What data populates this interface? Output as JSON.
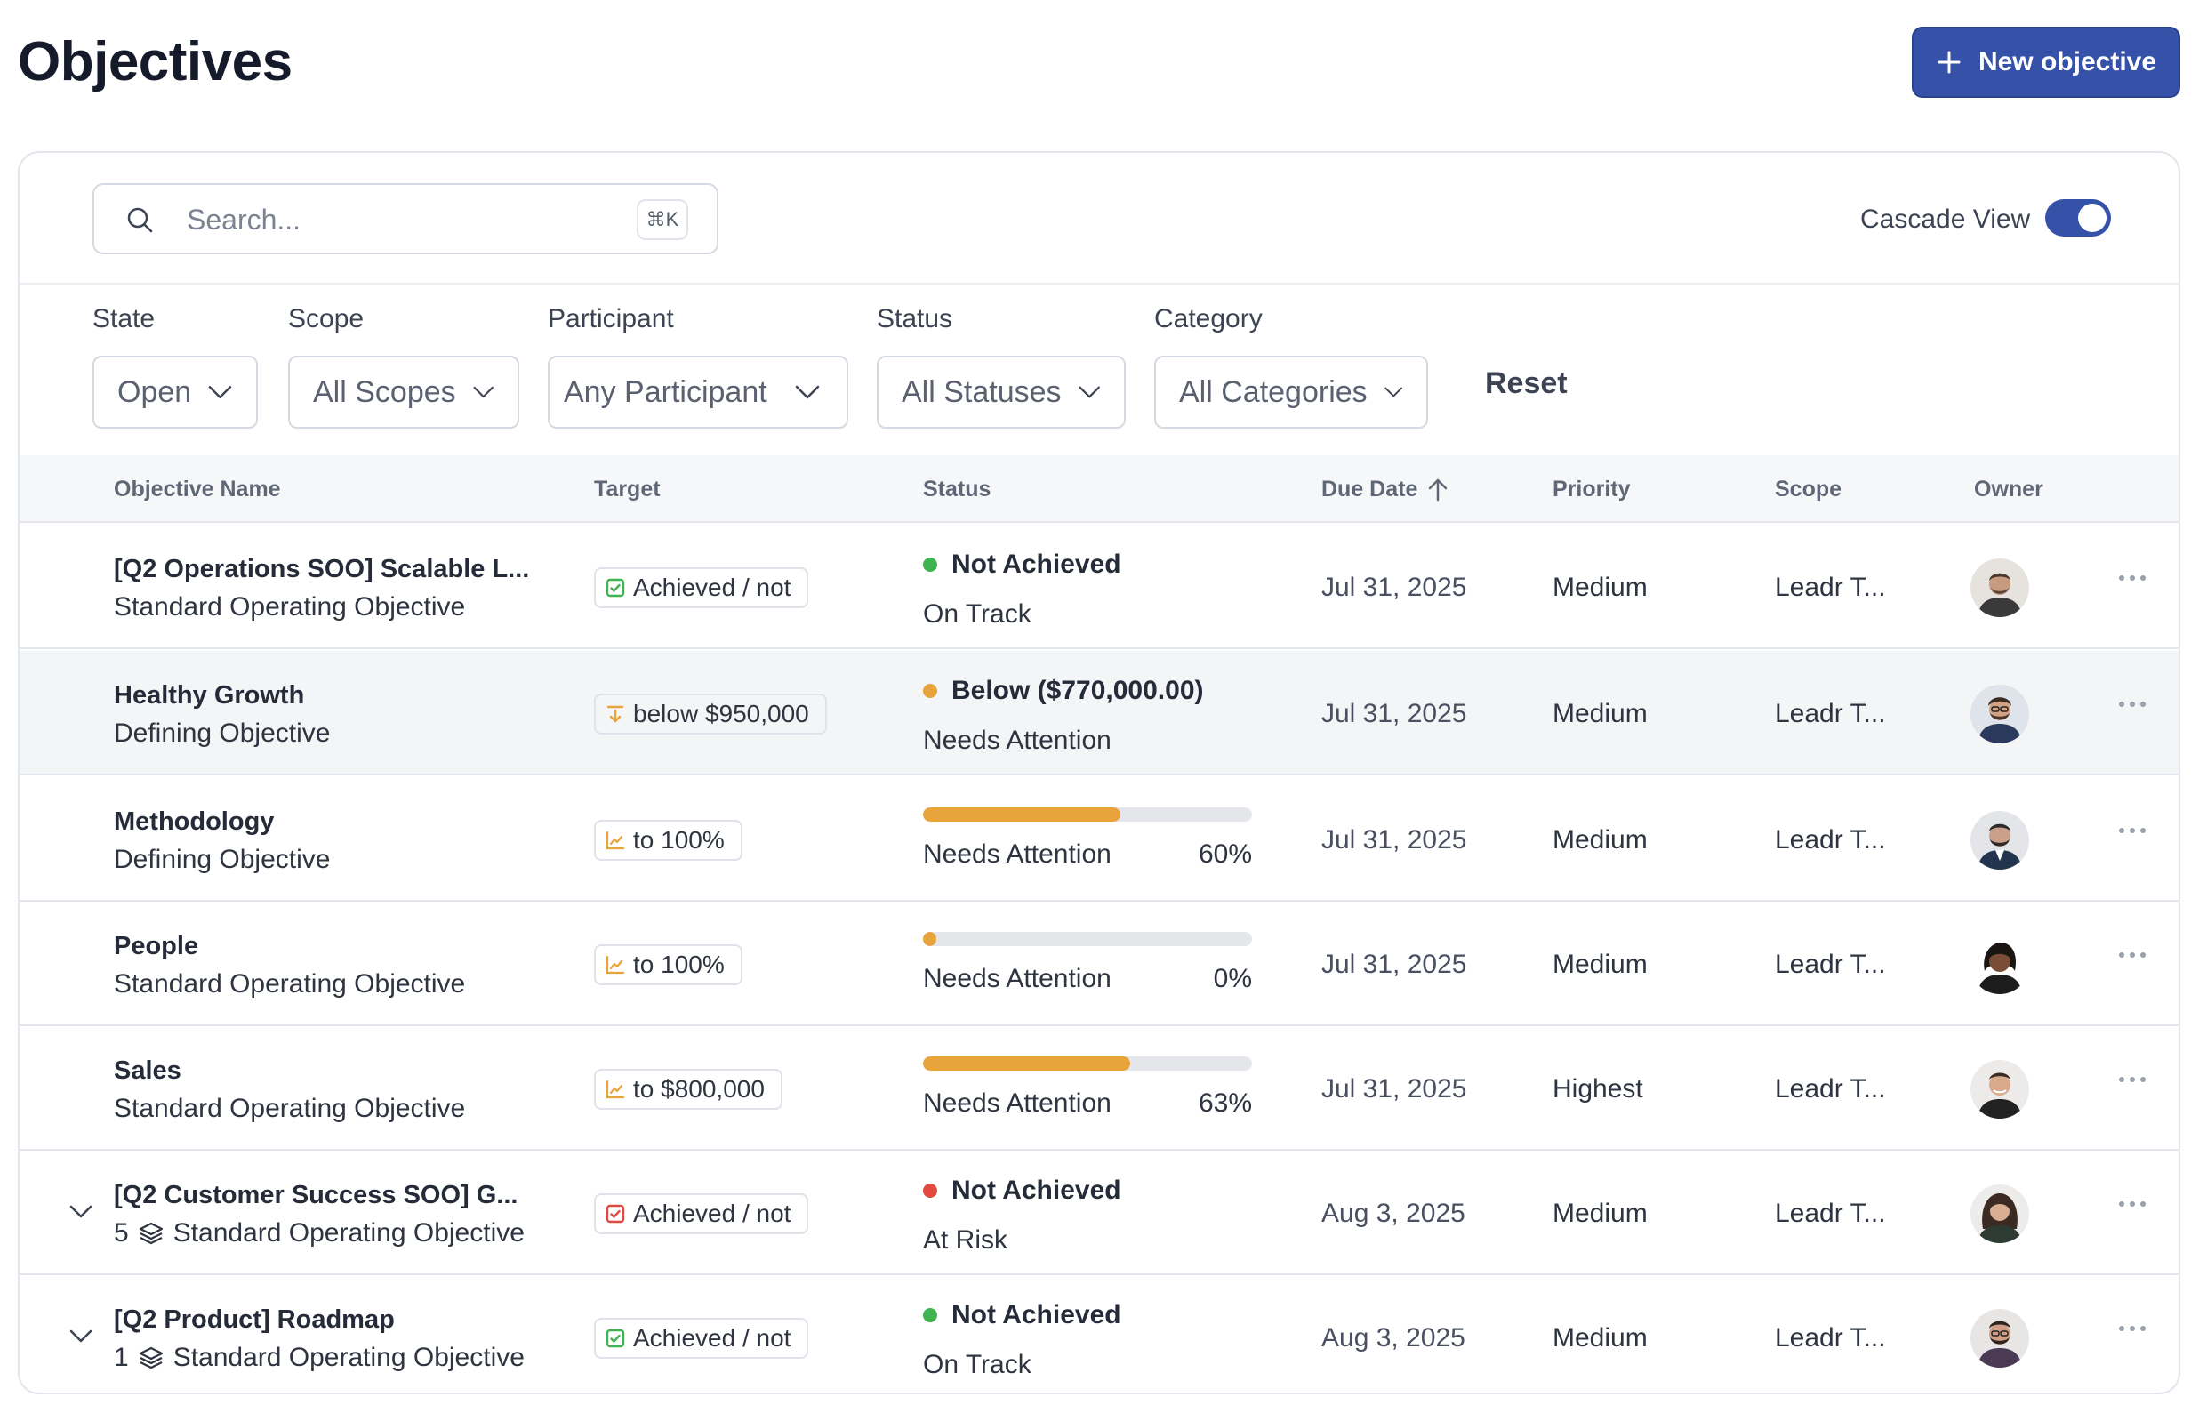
{
  "header": {
    "title": "Objectives",
    "new_button_label": "New objective"
  },
  "toolbar": {
    "search_placeholder": "Search...",
    "search_shortcut": "⌘K",
    "cascade_label": "Cascade View",
    "cascade_on": true
  },
  "filters": {
    "state": {
      "label": "State",
      "value": "Open"
    },
    "scope": {
      "label": "Scope",
      "value": "All Scopes"
    },
    "participant": {
      "label": "Participant",
      "value": "Any Participant"
    },
    "status": {
      "label": "Status",
      "value": "All Statuses"
    },
    "category": {
      "label": "Category",
      "value": "All Categories"
    },
    "reset_label": "Reset"
  },
  "table": {
    "columns": {
      "name": "Objective Name",
      "target": "Target",
      "status": "Status",
      "due": "Due Date",
      "priority": "Priority",
      "scope": "Scope",
      "owner": "Owner"
    },
    "rows": [
      {
        "name": "[Q2 Operations SOO] Scalable L...",
        "sub": "Standard Operating Objective",
        "target": "Achieved / not",
        "target_icon": "check-square-icon",
        "status_top": "Not Achieved",
        "status_bottom": "On Track",
        "due": "Jul 31, 2025",
        "priority": "Medium",
        "scope": "Leadr T..."
      },
      {
        "name": "Healthy Growth",
        "sub": "Defining Objective",
        "target": "below $950,000",
        "target_icon": "arrow-down-bar-icon",
        "status_top": "Below ($770,000.00)",
        "status_bottom": "Needs Attention",
        "due": "Jul 31, 2025",
        "priority": "Medium",
        "scope": "Leadr T..."
      },
      {
        "name": "Methodology",
        "sub": "Defining Objective",
        "target": "to 100%",
        "target_icon": "trend-up-icon",
        "status_label": "Needs Attention",
        "status_pct": "60%",
        "progress": 0.6,
        "due": "Jul 31, 2025",
        "priority": "Medium",
        "scope": "Leadr T..."
      },
      {
        "name": "People",
        "sub": "Standard Operating Objective",
        "target": "to 100%",
        "target_icon": "trend-up-icon",
        "status_label": "Needs Attention",
        "status_pct": "0%",
        "progress": 0.0,
        "due": "Jul 31, 2025",
        "priority": "Medium",
        "scope": "Leadr T..."
      },
      {
        "name": "Sales",
        "sub": "Standard Operating Objective",
        "target": "to $800,000",
        "target_icon": "trend-up-icon",
        "status_label": "Needs Attention",
        "status_pct": "63%",
        "progress": 0.63,
        "due": "Jul 31, 2025",
        "priority": "Highest",
        "scope": "Leadr T..."
      },
      {
        "name": "[Q2 Customer Success SOO] G...",
        "sub_count": "5",
        "sub": "Standard Operating Objective",
        "target": "Achieved / not",
        "target_icon": "x-square-icon",
        "status_top": "Not Achieved",
        "status_bottom": "At Risk",
        "due": "Aug 3, 2025",
        "priority": "Medium",
        "scope": "Leadr T..."
      },
      {
        "name": "[Q2 Product] Roadmap",
        "sub_count": "1",
        "sub": "Standard Operating Objective",
        "target": "Achieved / not",
        "target_icon": "check-square-icon",
        "status_top": "Not Achieved",
        "status_bottom": "On Track",
        "due": "Aug 3, 2025",
        "priority": "Medium",
        "scope": "Leadr T..."
      }
    ]
  },
  "colors": {
    "primary": "#3552a8",
    "green": "#3fb34f",
    "orange": "#e8a33b",
    "red": "#e04a3f"
  }
}
